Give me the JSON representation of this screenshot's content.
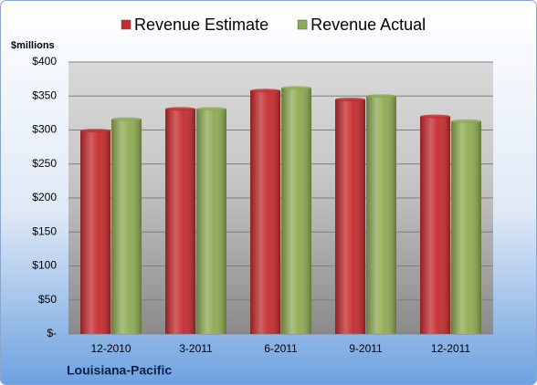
{
  "chart_data": {
    "type": "bar",
    "title": "Louisiana-Pacific",
    "y_label": "$millions",
    "categories": [
      "12-2010",
      "3-2011",
      "6-2011",
      "9-2011",
      "12-2011"
    ],
    "series": [
      {
        "name": "Revenue Estimate",
        "color": "#c42a2e",
        "values": [
          299,
          331,
          358,
          345,
          320
        ]
      },
      {
        "name": "Revenue Actual",
        "color": "#8eaa52",
        "values": [
          316,
          331,
          362,
          350,
          313
        ]
      }
    ],
    "ylim": [
      0,
      400
    ],
    "yticks": [
      {
        "value": 0,
        "label": "$-"
      },
      {
        "value": 50,
        "label": "$50"
      },
      {
        "value": 100,
        "label": "$100"
      },
      {
        "value": 150,
        "label": "$150"
      },
      {
        "value": 200,
        "label": "$200"
      },
      {
        "value": 250,
        "label": "$250"
      },
      {
        "value": 300,
        "label": "$300"
      },
      {
        "value": 350,
        "label": "$350"
      },
      {
        "value": 400,
        "label": "$400"
      }
    ],
    "grid": true,
    "legend": "top"
  }
}
